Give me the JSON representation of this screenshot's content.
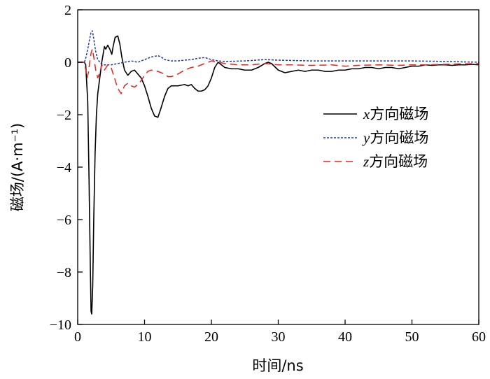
{
  "chart_data": {
    "type": "line",
    "xlabel": "时间/ns",
    "ylabel": "磁场/(A·m⁻¹)",
    "xlim": [
      0,
      60
    ],
    "ylim": [
      -10,
      2
    ],
    "xticks": [
      "0",
      "10",
      "20",
      "30",
      "40",
      "50",
      "60"
    ],
    "yticks": [
      "2",
      "0",
      "−2",
      "−4",
      "−6",
      "−8",
      "−10"
    ],
    "grid": false,
    "legend_position": "right",
    "series": [
      {
        "name": "x方向磁场",
        "var": "x",
        "suffix": "方向磁场",
        "color": "#000000",
        "dash": "solid",
        "points": [
          [
            0,
            0
          ],
          [
            1,
            0
          ],
          [
            1.2,
            -0.1
          ],
          [
            1.5,
            -1.5
          ],
          [
            1.7,
            -4.5
          ],
          [
            1.9,
            -8
          ],
          [
            2.0,
            -9.5
          ],
          [
            2.1,
            -9.6
          ],
          [
            2.25,
            -8.5
          ],
          [
            2.4,
            -6
          ],
          [
            2.6,
            -3.5
          ],
          [
            2.8,
            -2
          ],
          [
            3.0,
            -1.2
          ],
          [
            3.3,
            -0.6
          ],
          [
            3.6,
            0
          ],
          [
            3.8,
            0.3
          ],
          [
            4.0,
            0.6
          ],
          [
            4.2,
            0.5
          ],
          [
            4.5,
            0.65
          ],
          [
            4.8,
            0.5
          ],
          [
            5.1,
            0.3
          ],
          [
            5.3,
            0.6
          ],
          [
            5.6,
            0.95
          ],
          [
            6.0,
            1.0
          ],
          [
            6.3,
            0.7
          ],
          [
            6.6,
            0.2
          ],
          [
            7.0,
            -0.3
          ],
          [
            7.5,
            -0.5
          ],
          [
            8.0,
            -0.35
          ],
          [
            8.5,
            -0.3
          ],
          [
            9.0,
            -0.45
          ],
          [
            9.5,
            -0.6
          ],
          [
            10.0,
            -0.9
          ],
          [
            10.5,
            -1.3
          ],
          [
            11.0,
            -1.75
          ],
          [
            11.5,
            -2.05
          ],
          [
            12.0,
            -2.1
          ],
          [
            12.4,
            -1.8
          ],
          [
            13.0,
            -1.3
          ],
          [
            13.5,
            -1.0
          ],
          [
            14.0,
            -0.9
          ],
          [
            15.0,
            -0.9
          ],
          [
            16.0,
            -0.85
          ],
          [
            16.5,
            -0.9
          ],
          [
            17.0,
            -0.85
          ],
          [
            17.5,
            -1.0
          ],
          [
            18.0,
            -1.1
          ],
          [
            18.5,
            -1.1
          ],
          [
            19.0,
            -1.05
          ],
          [
            19.5,
            -0.9
          ],
          [
            20.0,
            -0.6
          ],
          [
            20.5,
            -0.2
          ],
          [
            21.0,
            0.0
          ],
          [
            21.5,
            -0.1
          ],
          [
            22.0,
            -0.2
          ],
          [
            23,
            -0.25
          ],
          [
            24,
            -0.25
          ],
          [
            25,
            -0.3
          ],
          [
            26,
            -0.3
          ],
          [
            27,
            -0.2
          ],
          [
            28,
            -0.05
          ],
          [
            28.5,
            0.0
          ],
          [
            29,
            -0.05
          ],
          [
            30,
            -0.3
          ],
          [
            31,
            -0.4
          ],
          [
            32,
            -0.35
          ],
          [
            33,
            -0.3
          ],
          [
            34,
            -0.35
          ],
          [
            35,
            -0.3
          ],
          [
            36,
            -0.3
          ],
          [
            37,
            -0.35
          ],
          [
            38,
            -0.35
          ],
          [
            39,
            -0.3
          ],
          [
            40,
            -0.3
          ],
          [
            41,
            -0.25
          ],
          [
            42,
            -0.25
          ],
          [
            43,
            -0.2
          ],
          [
            44,
            -0.2
          ],
          [
            45,
            -0.25
          ],
          [
            46,
            -0.2
          ],
          [
            47,
            -0.2
          ],
          [
            48,
            -0.25
          ],
          [
            49,
            -0.2
          ],
          [
            50,
            -0.15
          ],
          [
            51,
            -0.15
          ],
          [
            52,
            -0.1
          ],
          [
            53,
            -0.12
          ],
          [
            54,
            -0.1
          ],
          [
            55,
            -0.1
          ],
          [
            56,
            -0.12
          ],
          [
            57,
            -0.1
          ],
          [
            58,
            -0.1
          ],
          [
            59,
            -0.08
          ],
          [
            60,
            -0.1
          ]
        ]
      },
      {
        "name": "y方向磁场",
        "var": "y",
        "suffix": "方向磁场",
        "color": "#1f3aa0",
        "dash": "dotted",
        "points": [
          [
            0,
            0
          ],
          [
            1.0,
            0
          ],
          [
            1.2,
            0.15
          ],
          [
            1.5,
            0.5
          ],
          [
            1.8,
            0.9
          ],
          [
            2.0,
            1.15
          ],
          [
            2.2,
            1.2
          ],
          [
            2.4,
            0.9
          ],
          [
            2.7,
            0.4
          ],
          [
            3.0,
            0.1
          ],
          [
            3.5,
            -0.05
          ],
          [
            4.0,
            -0.1
          ],
          [
            5,
            -0.1
          ],
          [
            6,
            -0.05
          ],
          [
            7,
            0.0
          ],
          [
            8,
            0.05
          ],
          [
            9,
            0.0
          ],
          [
            10,
            0.1
          ],
          [
            11,
            0.2
          ],
          [
            12,
            0.25
          ],
          [
            12.5,
            0.2
          ],
          [
            13,
            0.1
          ],
          [
            14,
            0.05
          ],
          [
            15,
            0.05
          ],
          [
            16,
            0.08
          ],
          [
            17,
            0.1
          ],
          [
            18,
            0.15
          ],
          [
            19,
            0.18
          ],
          [
            20,
            0.1
          ],
          [
            21,
            0.05
          ],
          [
            22,
            0.03
          ],
          [
            25,
            0.05
          ],
          [
            28,
            0.1
          ],
          [
            30,
            0.08
          ],
          [
            35,
            0.05
          ],
          [
            40,
            0.05
          ],
          [
            45,
            0.05
          ],
          [
            50,
            0.05
          ],
          [
            55,
            0.03
          ],
          [
            60,
            0.0
          ]
        ]
      },
      {
        "name": "z方向磁场",
        "var": "z",
        "suffix": "方向磁场",
        "color": "#e8231e",
        "dash": "dashed",
        "points": [
          [
            0,
            0
          ],
          [
            1.0,
            0
          ],
          [
            1.2,
            -0.3
          ],
          [
            1.4,
            -0.6
          ],
          [
            1.6,
            -0.4
          ],
          [
            1.8,
            0.0
          ],
          [
            2.0,
            0.35
          ],
          [
            2.2,
            0.5
          ],
          [
            2.4,
            0.2
          ],
          [
            2.7,
            -0.3
          ],
          [
            3.0,
            -0.6
          ],
          [
            3.3,
            -0.4
          ],
          [
            3.6,
            -0.1
          ],
          [
            4.0,
            -0.3
          ],
          [
            4.5,
            -0.1
          ],
          [
            5.0,
            -0.2
          ],
          [
            5.5,
            -0.6
          ],
          [
            6.0,
            -1.0
          ],
          [
            6.5,
            -1.2
          ],
          [
            7.0,
            -0.9
          ],
          [
            7.5,
            -0.8
          ],
          [
            8.0,
            -0.9
          ],
          [
            8.5,
            -0.95
          ],
          [
            9.0,
            -0.85
          ],
          [
            9.5,
            -0.7
          ],
          [
            10.0,
            -0.5
          ],
          [
            10.5,
            -0.35
          ],
          [
            11.0,
            -0.3
          ],
          [
            12.0,
            -0.35
          ],
          [
            13.0,
            -0.45
          ],
          [
            13.5,
            -0.55
          ],
          [
            14.0,
            -0.55
          ],
          [
            15.0,
            -0.45
          ],
          [
            16.0,
            -0.3
          ],
          [
            17.0,
            -0.2
          ],
          [
            18.0,
            -0.15
          ],
          [
            19.0,
            -0.05
          ],
          [
            20.0,
            0.05
          ],
          [
            21.0,
            0.0
          ],
          [
            22.0,
            -0.05
          ],
          [
            24,
            -0.1
          ],
          [
            26,
            -0.1
          ],
          [
            28,
            -0.05
          ],
          [
            30,
            -0.1
          ],
          [
            32,
            -0.1
          ],
          [
            35,
            -0.12
          ],
          [
            38,
            -0.1
          ],
          [
            40,
            -0.15
          ],
          [
            42,
            -0.12
          ],
          [
            45,
            -0.1
          ],
          [
            48,
            -0.12
          ],
          [
            50,
            -0.1
          ],
          [
            52,
            -0.1
          ],
          [
            55,
            -0.08
          ],
          [
            58,
            -0.06
          ],
          [
            60,
            -0.05
          ]
        ]
      }
    ]
  }
}
